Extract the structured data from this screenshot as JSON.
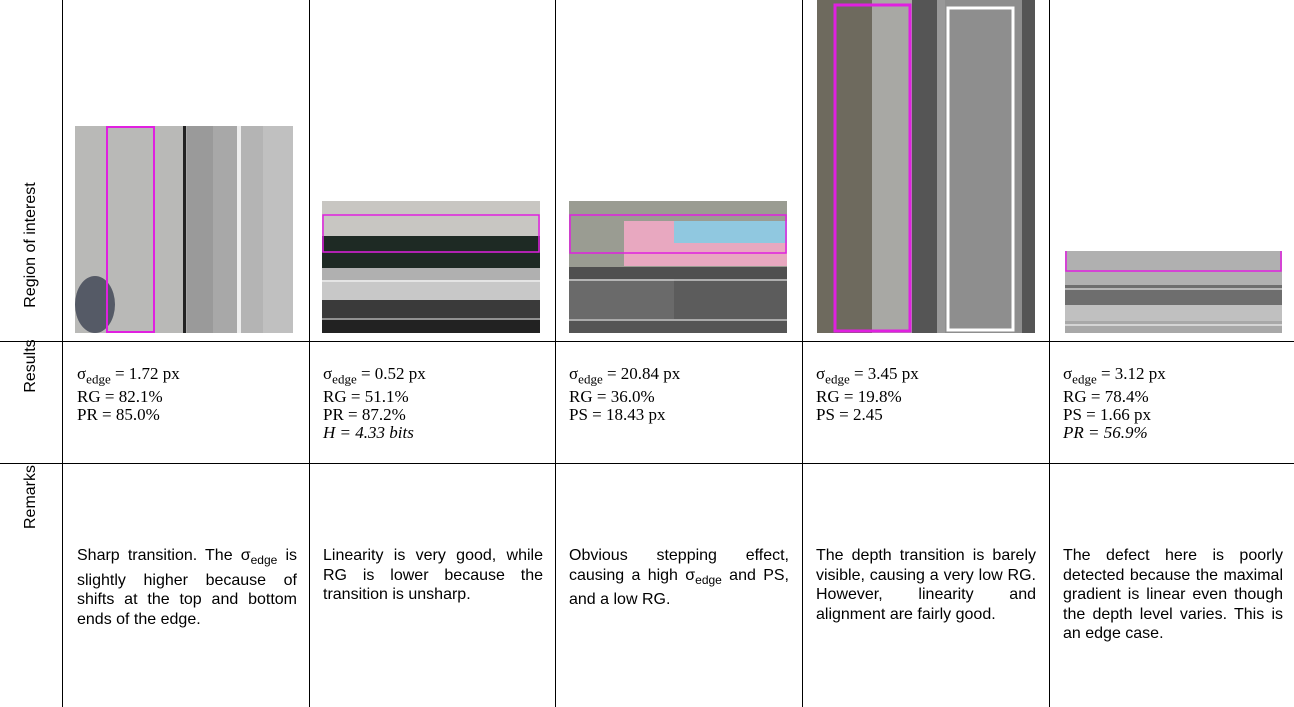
{
  "table": {
    "row_labels": [
      "Region of interest",
      "Results",
      "Remarks"
    ],
    "results": [
      {
        "symbol": "σ",
        "subscript": "edge",
        "value": " = 1.72 px",
        "lines": [
          "RG = 82.1%",
          "PR = 85.0%"
        ]
      },
      {
        "symbol": "σ",
        "subscript": "edge",
        "value": " = 0.52 px",
        "lines": [
          "RG = 51.1%",
          "PR = 87.2%",
          "H = 4.33 bits"
        ]
      },
      {
        "symbol": "σ",
        "subscript": "edge",
        "value": " = 20.84 px",
        "lines": [
          "RG = 36.0%",
          "PS = 18.43 px"
        ]
      },
      {
        "symbol": "σ",
        "subscript": "edge",
        "value": " = 3.45 px",
        "lines": [
          "RG = 19.8%",
          "PS = 2.45"
        ]
      },
      {
        "symbol": "σ",
        "subscript": "edge",
        "value": " = 3.12 px",
        "lines": [
          "RG = 78.4%",
          "PS = 1.66 px",
          "PR = 56.9%"
        ]
      }
    ],
    "remarks": [
      {
        "before": "Sharp transition. The σ",
        "sub": "edge",
        "after": " is slightly higher because of shifts at the top and bottom ends of the edge."
      },
      {
        "before": "Linearity is very good, while RG is lower because the transition is unsharp."
      },
      {
        "before": "Obvious stepping effect, causing a high σ",
        "sub": "edge",
        "after": " and PS, and a low RG."
      },
      {
        "before": "The depth transition is barely visible, causing a very low RG. However, linearity and alignment are fairly good."
      },
      {
        "before": "The defect here is poorly detected because the maximal gradient is linear even though the depth level varies. This is an edge case."
      }
    ]
  }
}
